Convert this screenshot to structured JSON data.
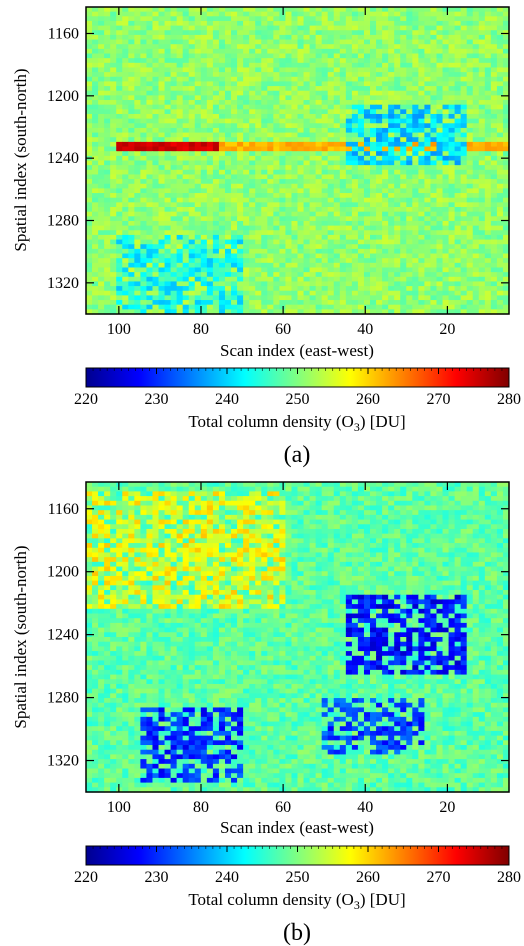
{
  "colorbar": {
    "min": 220,
    "max": 280,
    "ticks": [
      "220",
      "230",
      "240",
      "250",
      "260",
      "270",
      "280"
    ],
    "label_main": "Total column density (O",
    "label_sub": "3",
    "label_end": ") [DU]",
    "stops": [
      "#00008f",
      "#0000ff",
      "#0080ff",
      "#00ffff",
      "#80ff80",
      "#ffff00",
      "#ff8000",
      "#ff0000",
      "#800000"
    ]
  },
  "chart_data": [
    {
      "type": "heatmap",
      "panel_label": "(a)",
      "xlabel": "Scan index (east-west)",
      "ylabel": "Spatial index (south-north)",
      "x_ticks": [
        "100",
        "80",
        "60",
        "40",
        "20"
      ],
      "y_ticks": [
        "1160",
        "1200",
        "1240",
        "1280",
        "1320"
      ],
      "xlim": [
        108,
        5
      ],
      "ylim": [
        1340,
        1143
      ],
      "value_range": [
        220,
        280
      ],
      "typical_value": 251,
      "features": [
        {
          "description_id": "red stripe",
          "y": 1232,
          "x_range": [
            100,
            75
          ],
          "value": 275
        },
        {
          "description_id": "stripe continuation",
          "y": 1232,
          "x_range": [
            75,
            5
          ],
          "value": 262
        },
        {
          "description_id": "low patch",
          "y_range": [
            1205,
            1245
          ],
          "x_range": [
            45,
            15
          ],
          "value": 240
        },
        {
          "description_id": "low patch",
          "y_range": [
            1290,
            1340
          ],
          "x_range": [
            100,
            70
          ],
          "value": 243
        }
      ]
    },
    {
      "type": "heatmap",
      "panel_label": "(b)",
      "xlabel": "Scan index (east-west)",
      "ylabel": "Spatial index (south-north)",
      "x_ticks": [
        "100",
        "80",
        "60",
        "40",
        "20"
      ],
      "y_ticks": [
        "1160",
        "1200",
        "1240",
        "1280",
        "1320"
      ],
      "xlim": [
        108,
        5
      ],
      "ylim": [
        1340,
        1143
      ],
      "value_range": [
        220,
        280
      ],
      "typical_value": 248,
      "features": [
        {
          "description_id": "high region",
          "y_range": [
            1150,
            1225
          ],
          "x_range": [
            108,
            60
          ],
          "value": 257
        },
        {
          "description_id": "low cluster",
          "y_range": [
            1215,
            1265
          ],
          "x_range": [
            45,
            15
          ],
          "value": 228
        },
        {
          "description_id": "low cluster",
          "y_range": [
            1285,
            1335
          ],
          "x_range": [
            95,
            70
          ],
          "value": 230
        },
        {
          "description_id": "low cluster",
          "y_range": [
            1280,
            1315
          ],
          "x_range": [
            50,
            25
          ],
          "value": 231
        }
      ]
    }
  ]
}
